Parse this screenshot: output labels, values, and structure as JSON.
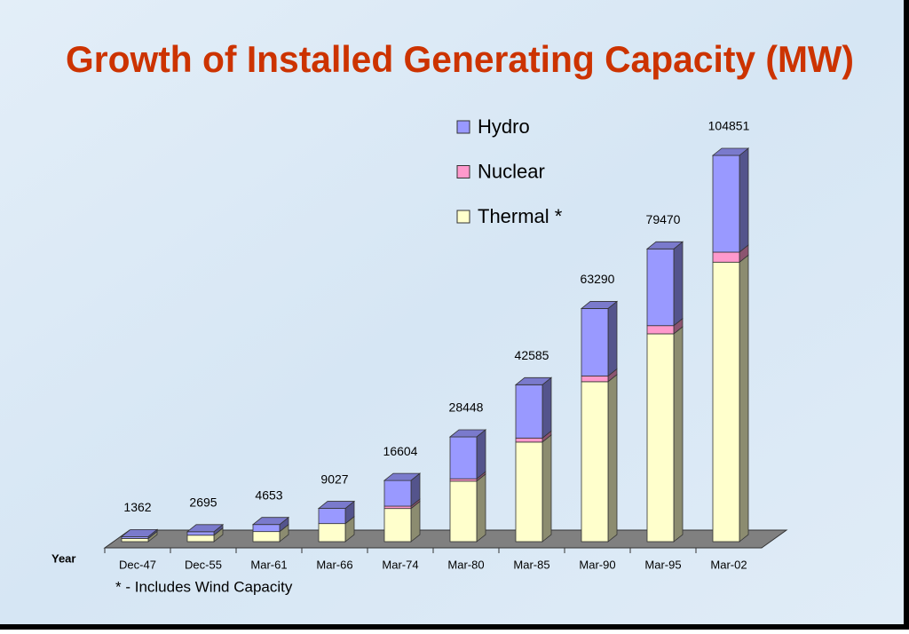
{
  "chart_data": {
    "type": "stacked_bar_3d",
    "title": "Growth of Installed Generating Capacity (MW)",
    "x_label": "Year",
    "footnote": "* - Includes Wind Capacity",
    "categories": [
      "Dec-47",
      "Dec-55",
      "Mar-61",
      "Mar-66",
      "Mar-74",
      "Mar-80",
      "Mar-85",
      "Mar-90",
      "Mar-95",
      "Mar-02"
    ],
    "totals": [
      1362,
      2695,
      4653,
      9027,
      16604,
      28448,
      42585,
      63290,
      79470,
      104851
    ],
    "series": [
      {
        "name": "Hydro",
        "color": "#9999ff",
        "values": [
          508,
          940,
          1917,
          4124,
          6966,
          11384,
          14460,
          18307,
          20833,
          26269
        ]
      },
      {
        "name": "Nuclear",
        "color": "#ff99cc",
        "values": [
          0,
          0,
          0,
          0,
          640,
          640,
          1095,
          1565,
          2225,
          2720
        ]
      },
      {
        "name": "Thermal *",
        "color": "#ffffcc",
        "values": [
          854,
          1755,
          2736,
          4903,
          8998,
          16424,
          27030,
          43418,
          56412,
          75862
        ]
      }
    ],
    "legend": "top-center"
  }
}
